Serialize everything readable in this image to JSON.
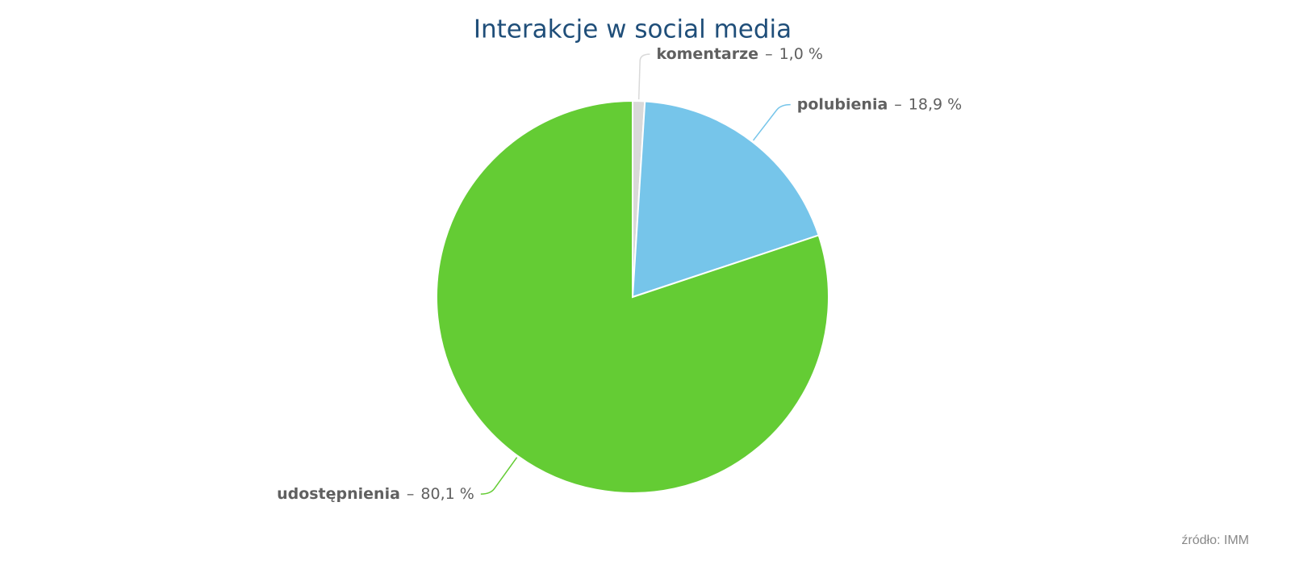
{
  "chart_data": {
    "type": "pie",
    "title": "Interakcje w social media",
    "categories": [
      "komentarze",
      "polubienia",
      "udostępnienia"
    ],
    "values": [
      1.0,
      18.9,
      80.1
    ],
    "value_labels": [
      "1,0 %",
      "18,9 %",
      "80,1 %"
    ],
    "label_separator": "–",
    "colors": [
      "#d9d9d9",
      "#76c5ea",
      "#64cc34"
    ],
    "source": "źródło: IMM"
  }
}
